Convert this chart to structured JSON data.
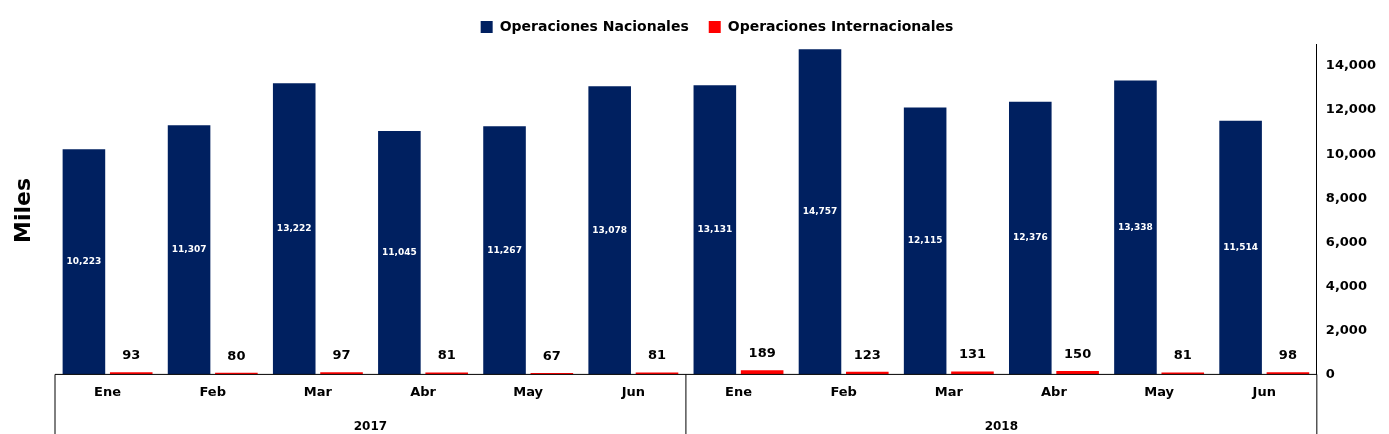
{
  "chart_data": {
    "type": "bar",
    "ylabel": "Miles",
    "categories": [
      "Ene",
      "Feb",
      "Mar",
      "Abr",
      "May",
      "Jun",
      "Ene",
      "Feb",
      "Mar",
      "Abr",
      "May",
      "Jun"
    ],
    "series": [
      {
        "name": "Operaciones Nacionales",
        "color": "#002060",
        "values": [
          10223,
          11307,
          13222,
          11045,
          11267,
          13078,
          13131,
          14757,
          12115,
          12376,
          13338,
          11514
        ],
        "value_labels": [
          "10,223",
          "11,307",
          "13,222",
          "11,045",
          "11,267",
          "13,078",
          "13,131",
          "14,757",
          "12,115",
          "12,376",
          "13,338",
          "11,514"
        ]
      },
      {
        "name": "Operaciones Internacionales",
        "color": "#ff0000",
        "values": [
          93,
          80,
          97,
          81,
          67,
          81,
          189,
          123,
          131,
          150,
          81,
          98
        ],
        "value_labels": [
          "93",
          "80",
          "97",
          "81",
          "67",
          "81",
          "189",
          "123",
          "131",
          "150",
          "81",
          "98"
        ]
      }
    ],
    "annotations": [
      "2017",
      "2018"
    ],
    "ylim": [
      0,
      15000
    ],
    "yticks": [
      0,
      {
        "value": 2000,
        "label": "2,000"
      },
      {
        "value": 4000,
        "label": "4,000"
      },
      {
        "value": 6000,
        "label": "6,000"
      },
      {
        "value": 8000,
        "label": "8,000"
      },
      {
        "value": 10000,
        "label": "10,000"
      },
      {
        "value": 12000,
        "label": "12,000"
      },
      {
        "value": 14000,
        "label": "14,000"
      }
    ],
    "legend": "top",
    "grid": false
  }
}
